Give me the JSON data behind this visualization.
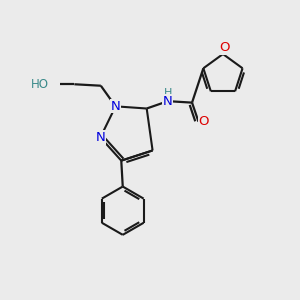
{
  "bg_color": "#ebebeb",
  "bond_color": "#1a1a1a",
  "N_color": "#0000dd",
  "O_color": "#dd0000",
  "H_color": "#3a8a8a",
  "figsize": [
    3.0,
    3.0
  ],
  "dpi": 100,
  "xlim": [
    0,
    10
  ],
  "ylim": [
    0,
    10
  ]
}
